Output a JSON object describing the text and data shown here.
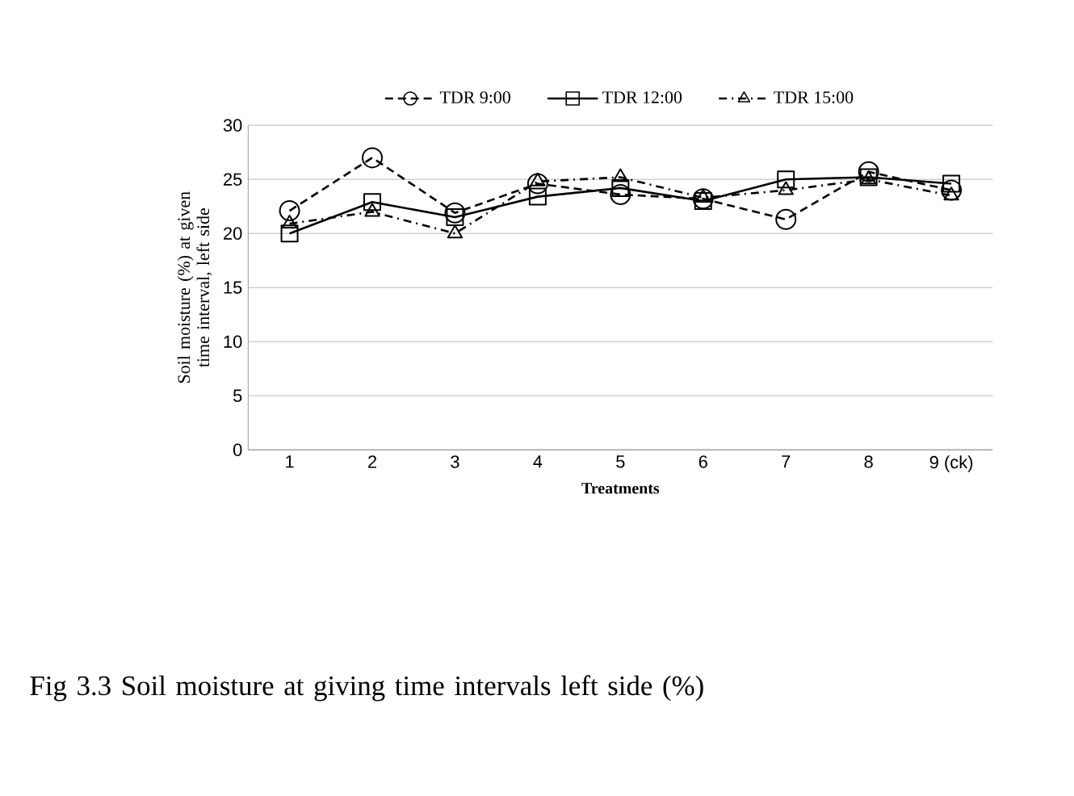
{
  "chart_data": {
    "type": "line",
    "xlabel": "Treatments",
    "ylabel": "Soil moisture (%) at given time interval, left side",
    "categories": [
      "1",
      "2",
      "3",
      "4",
      "5",
      "6",
      "7",
      "8",
      "9 (ck)"
    ],
    "series": [
      {
        "name": "TDR 9:00",
        "color": "#000000",
        "marker": "circle",
        "line_style": "dashed",
        "values": [
          22.1,
          27.0,
          21.9,
          24.6,
          23.6,
          23.2,
          21.3,
          25.7,
          24.0
        ]
      },
      {
        "name": "TDR 12:00",
        "color": "#000000",
        "marker": "square",
        "line_style": "solid",
        "values": [
          20.0,
          22.9,
          21.5,
          23.4,
          24.2,
          23.0,
          25.0,
          25.2,
          24.6
        ]
      },
      {
        "name": "TDR 15:00",
        "color": "#000000",
        "marker": "triangle",
        "line_style": "dashdot",
        "values": [
          20.9,
          22.0,
          20.0,
          24.8,
          25.2,
          23.3,
          24.0,
          25.0,
          23.5
        ]
      }
    ],
    "ylim": [
      0,
      30
    ],
    "yticks": [
      0,
      5,
      10,
      15,
      20,
      25,
      30
    ],
    "grid": "y",
    "legend": "top",
    "annotations": [
      "Fig 3.3 Soil moisture at giving time intervals left side (%)"
    ]
  }
}
